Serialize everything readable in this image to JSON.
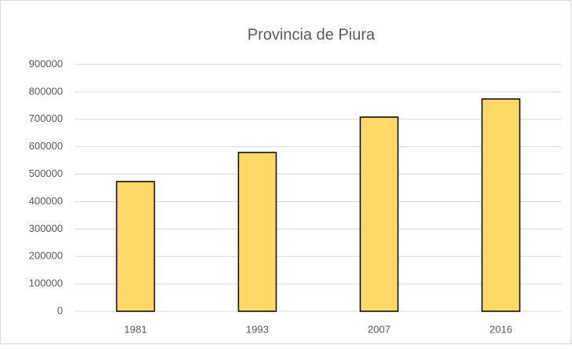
{
  "chart_data": {
    "type": "bar",
    "title": "Provincia de Piura",
    "categories": [
      "1981",
      "1993",
      "2007",
      "2016"
    ],
    "values": [
      473000,
      579000,
      708000,
      774000
    ],
    "color": "#ffd966",
    "ylim": [
      0,
      900000
    ],
    "yticks": [
      0,
      100000,
      200000,
      300000,
      400000,
      500000,
      600000,
      700000,
      800000,
      900000
    ],
    "grid": true
  }
}
